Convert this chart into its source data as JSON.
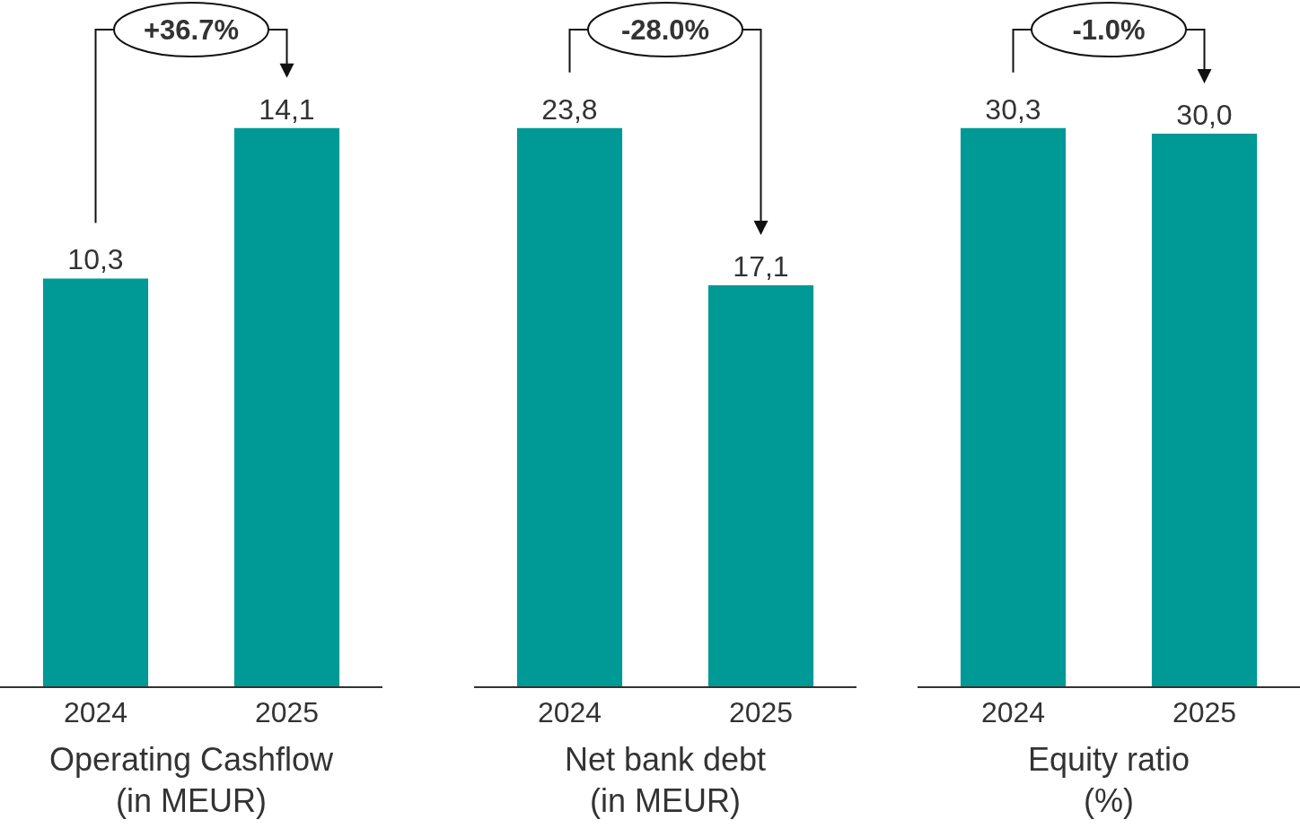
{
  "chart_data": [
    {
      "type": "bar",
      "xlabel": "Operating Cashflow\n(in MEUR)",
      "categories": [
        "2024",
        "2025"
      ],
      "values": [
        10.3,
        14.1
      ],
      "value_labels": [
        "10,3",
        "14,1"
      ],
      "color": "#009a96",
      "tick_labels": "x",
      "annotations": [
        "+36.7%"
      ]
    },
    {
      "type": "bar",
      "xlabel": "Net bank debt\n(in MEUR)",
      "categories": [
        "2024",
        "2025"
      ],
      "values": [
        23.8,
        17.1
      ],
      "value_labels": [
        "23,8",
        "17,1"
      ],
      "color": "#009a96",
      "tick_labels": "x",
      "annotations": [
        "-28.0%"
      ]
    },
    {
      "type": "bar",
      "xlabel": "Equity ratio\n(%)",
      "categories": [
        "2024",
        "2025"
      ],
      "values": [
        30.3,
        30.0
      ],
      "value_labels": [
        "30,3",
        "30,0"
      ],
      "color": "#009a96",
      "tick_labels": "x",
      "annotations": [
        "-1.0%"
      ]
    }
  ]
}
